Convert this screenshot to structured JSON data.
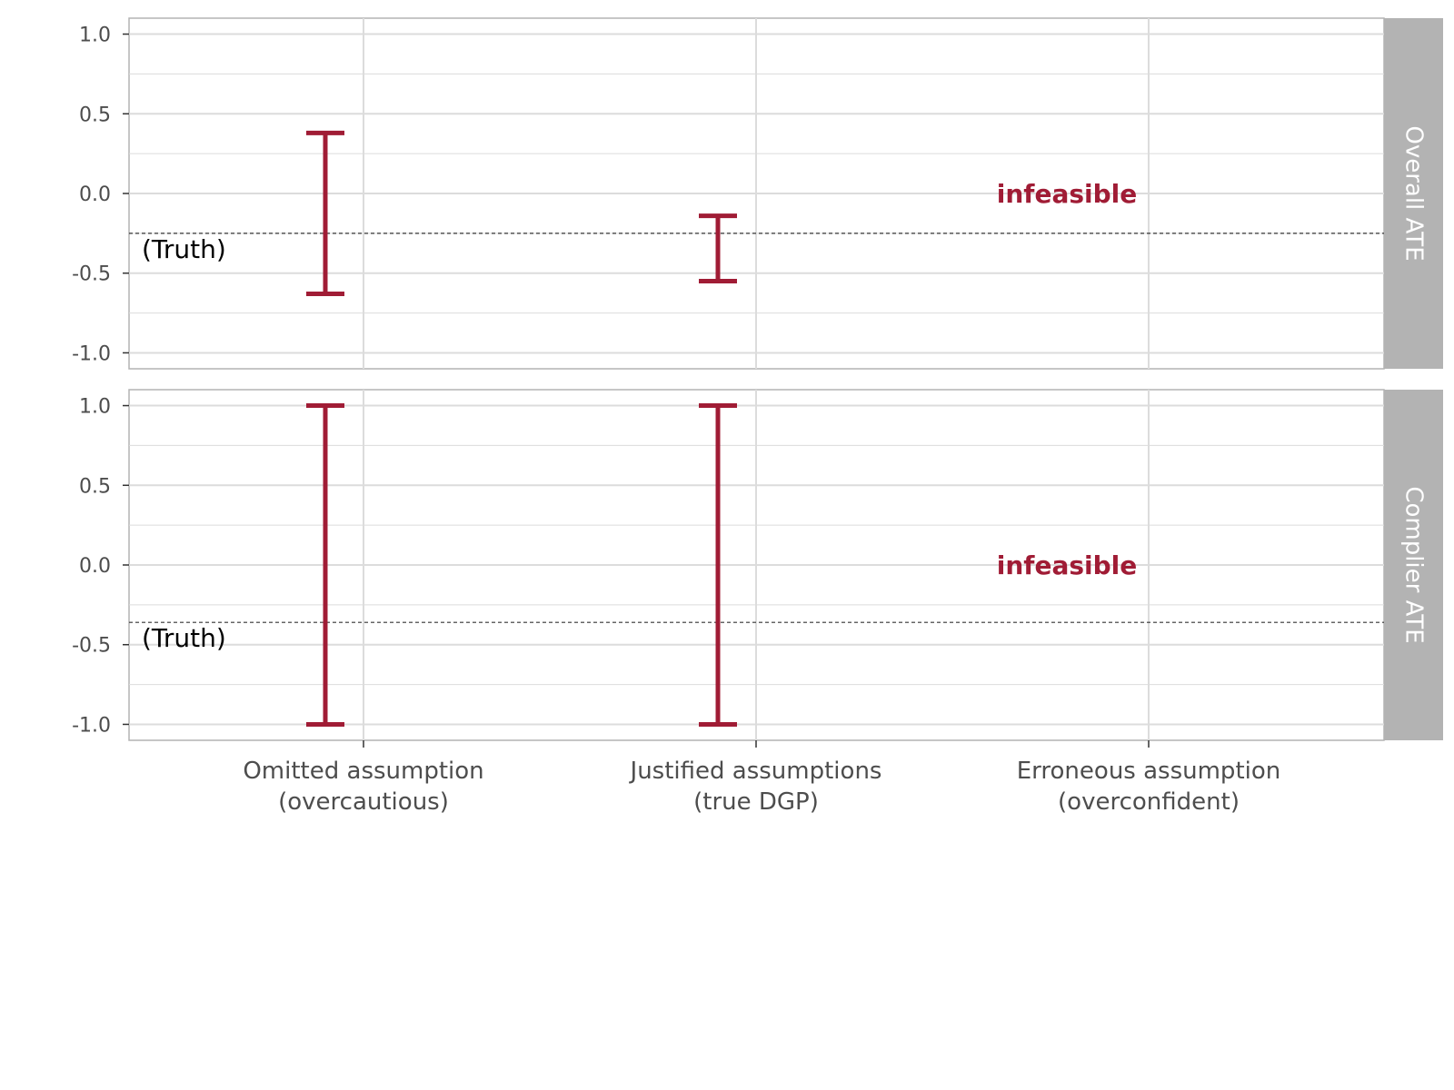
{
  "chart_data": {
    "type": "errorbar",
    "colors": {
      "interval": "#a01c35",
      "strip": "#b3b3b3",
      "grid": "#dcdcdc",
      "truth_line": "#333333"
    },
    "categories": [
      "Omitted assumption\n(overcautious)",
      "Justified assumptions\n(true DGP)",
      "Erroneous assumption\n(overconfident)"
    ],
    "ylim": [
      -1.1,
      1.1
    ],
    "yticks": [
      1.0,
      0.5,
      0.0,
      -0.5,
      -1.0
    ],
    "ytick_labels": [
      "1.0",
      "0.5",
      "0.0",
      "-0.5",
      "-1.0"
    ],
    "panels": [
      {
        "strip_label": "Overall ATE",
        "truth_value": -0.25,
        "truth_label": "(Truth)",
        "intervals": [
          {
            "category_index": 0,
            "lower": -0.63,
            "upper": 0.38
          },
          {
            "category_index": 1,
            "lower": -0.55,
            "upper": -0.14
          }
        ],
        "annotations": [
          {
            "category_index": 2,
            "text": "infeasible",
            "y": 0.0
          }
        ]
      },
      {
        "strip_label": "Complier ATE",
        "truth_value": -0.36,
        "truth_label": "(Truth)",
        "intervals": [
          {
            "category_index": 0,
            "lower": -1.0,
            "upper": 1.0
          },
          {
            "category_index": 1,
            "lower": -1.0,
            "upper": 1.0
          }
        ],
        "annotations": [
          {
            "category_index": 2,
            "text": "infeasible",
            "y": 0.0
          }
        ]
      }
    ]
  }
}
